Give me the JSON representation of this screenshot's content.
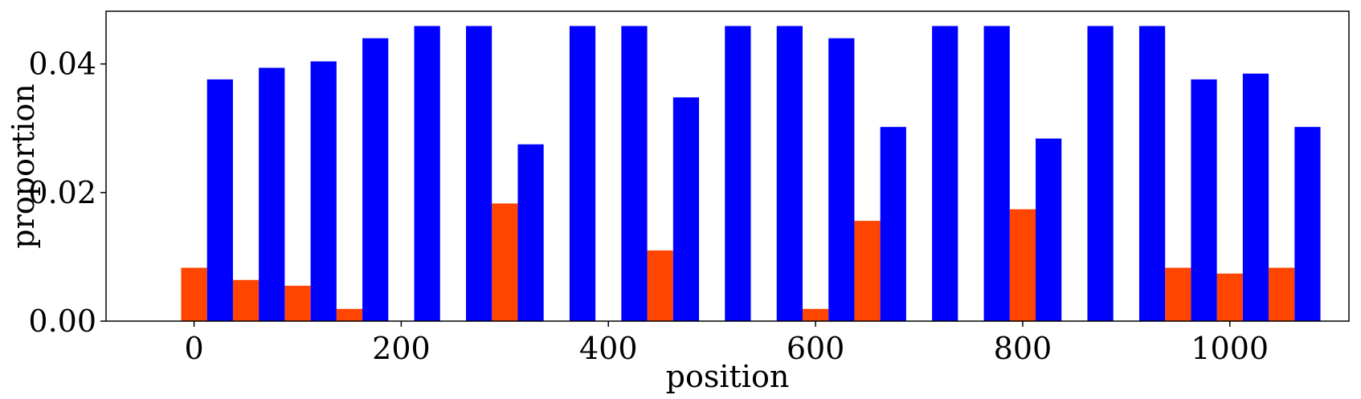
{
  "chart_data": {
    "type": "bar",
    "title": "",
    "xlabel": "position",
    "ylabel": "proportion",
    "xlim": [
      -85,
      1115
    ],
    "ylim": [
      0,
      0.0482
    ],
    "xticks": [
      0,
      200,
      400,
      600,
      800,
      1000
    ],
    "xtick_labels": [
      "0",
      "200",
      "400",
      "600",
      "800",
      "1000"
    ],
    "yticks": [
      0.0,
      0.02,
      0.04
    ],
    "ytick_labels": [
      "0.00",
      "0.02",
      "0.04"
    ],
    "grid": false,
    "bar_width": 25,
    "positions": [
      0,
      50,
      100,
      150,
      200,
      250,
      300,
      350,
      400,
      450,
      500,
      550,
      600,
      650,
      700,
      750,
      800,
      850,
      900,
      950,
      1000,
      1050
    ],
    "series": [
      {
        "color": "#ff4500",
        "offset": 0,
        "values": [
          0.0083,
          0.0064,
          0.0055,
          0.0019,
          0.0,
          0.0,
          0.0183,
          0.0,
          0.0,
          0.011,
          0.0,
          0.0,
          0.0019,
          0.0156,
          0.0,
          0.0,
          0.0174,
          0.0,
          0.0,
          0.0083,
          0.0074,
          0.0083
        ]
      },
      {
        "color": "#0000ff",
        "offset": 25,
        "values": [
          0.0376,
          0.0394,
          0.0404,
          0.044,
          0.0459,
          0.0459,
          0.0275,
          0.0459,
          0.0459,
          0.0348,
          0.0459,
          0.0459,
          0.044,
          0.0302,
          0.0459,
          0.0459,
          0.0284,
          0.0459,
          0.0459,
          0.0376,
          0.0385,
          0.0302
        ]
      }
    ]
  }
}
